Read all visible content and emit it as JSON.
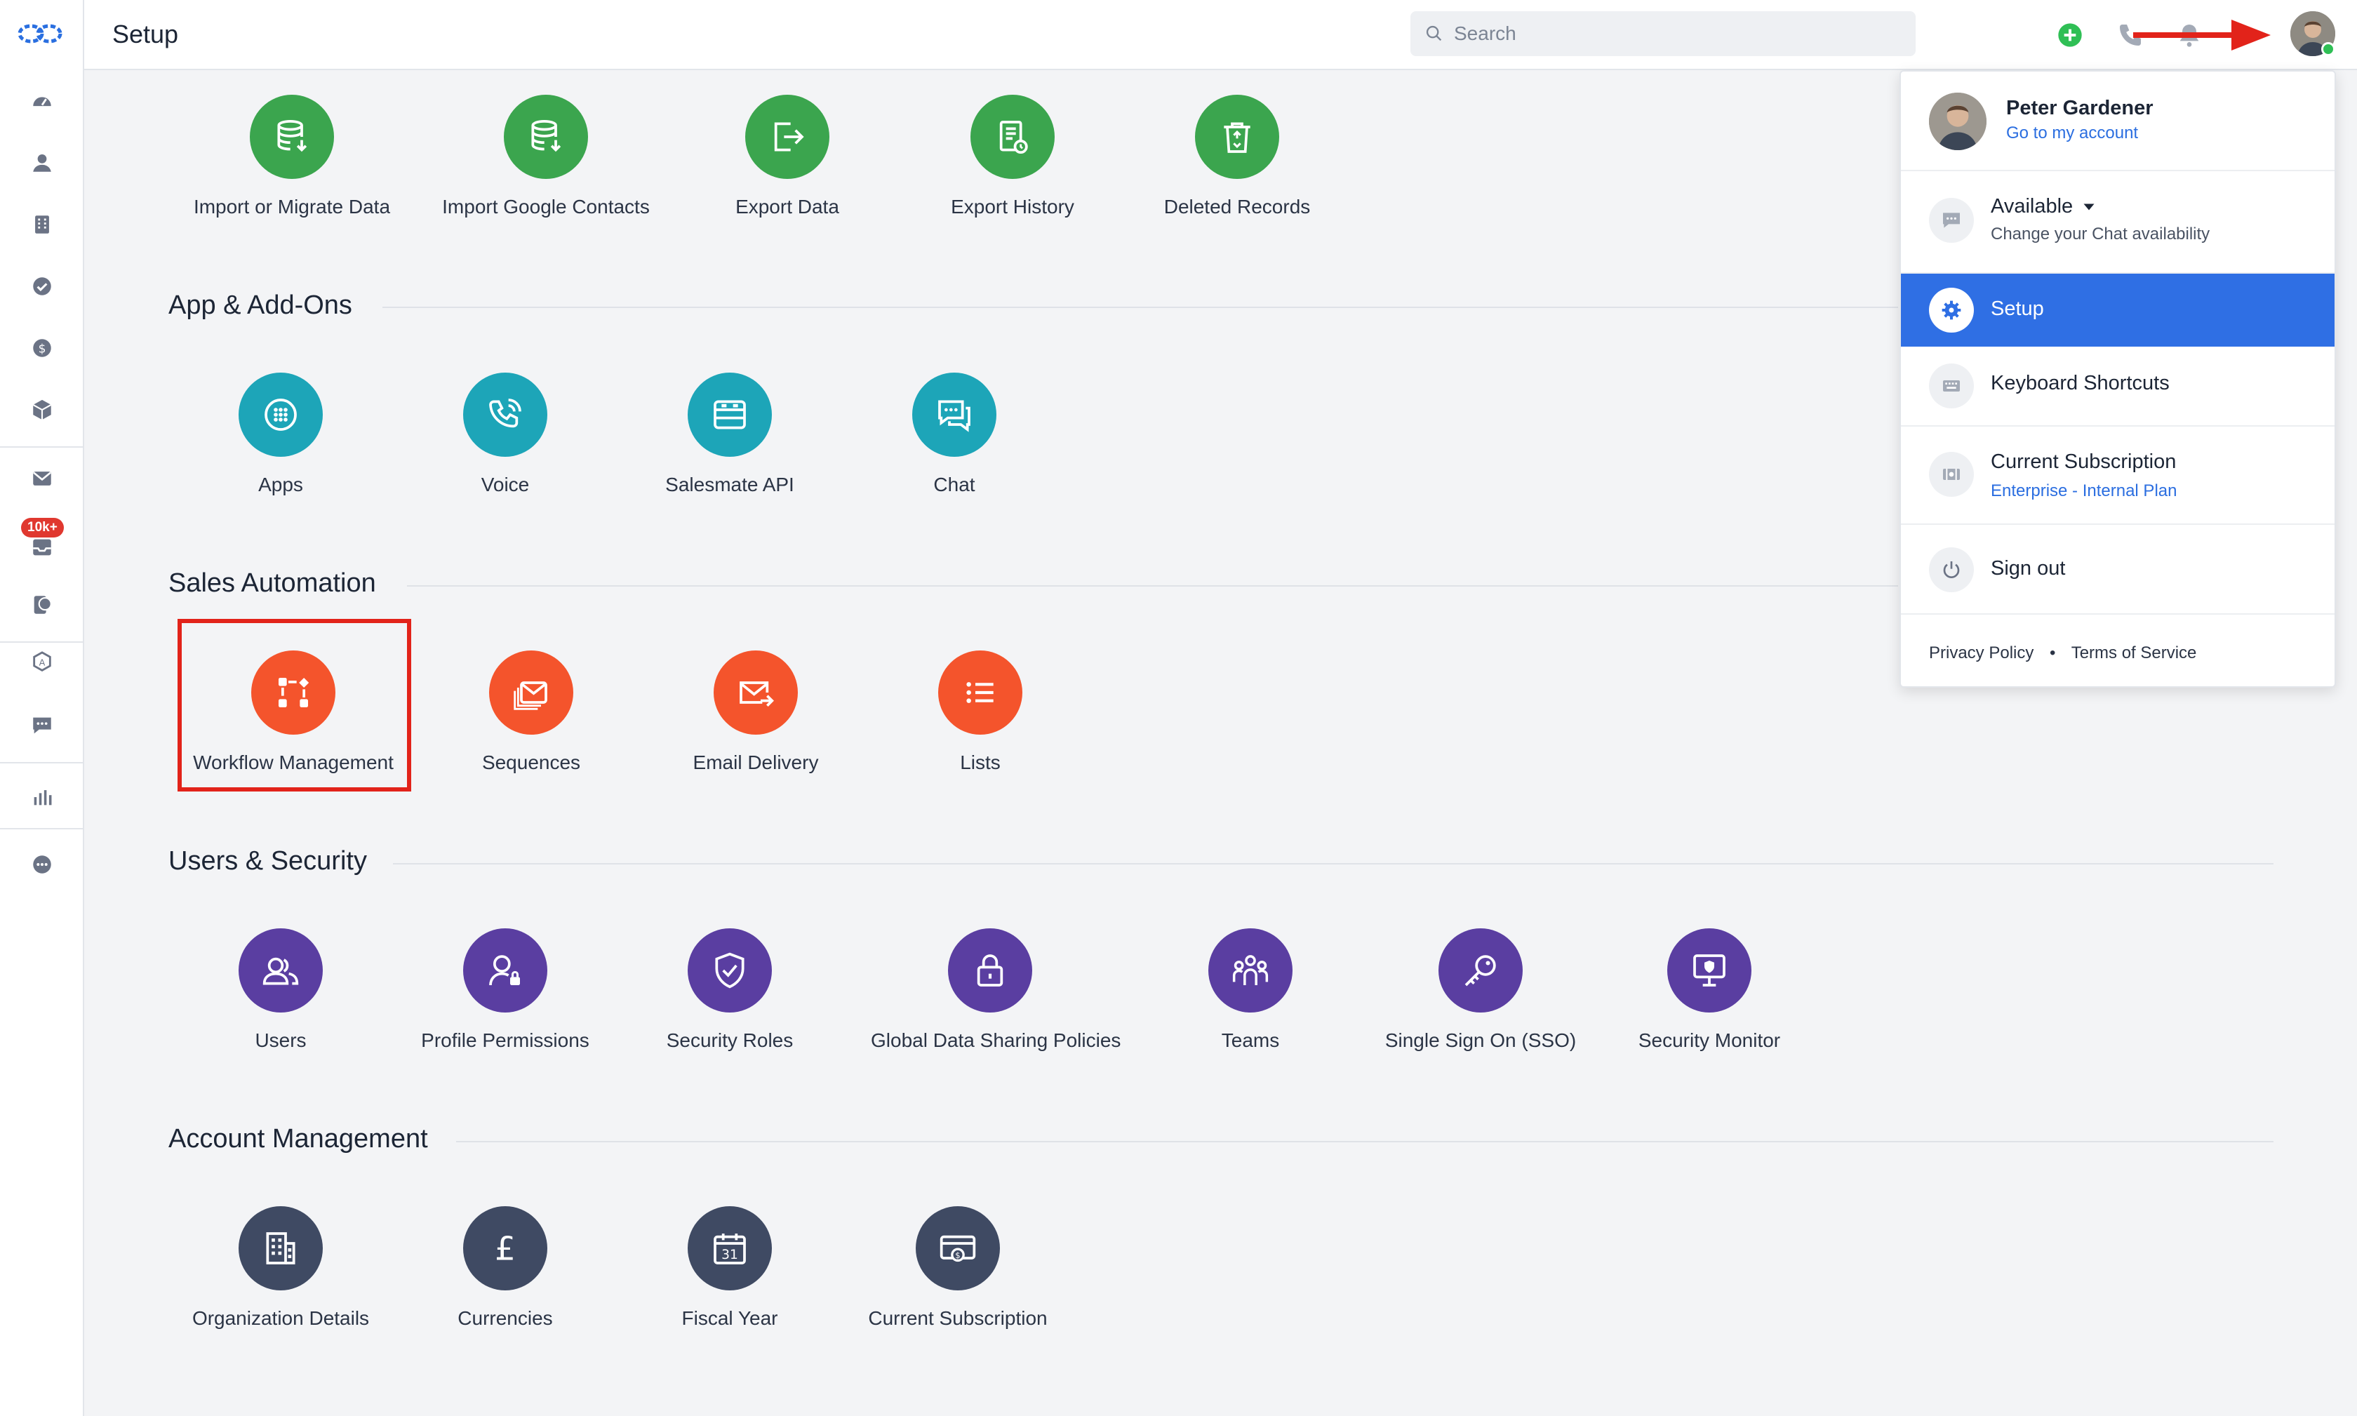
{
  "header": {
    "title": "Setup",
    "search_placeholder": "Search"
  },
  "rail": {
    "badge": "10k+"
  },
  "sections": {
    "data_administration": {
      "items": [
        {
          "label": "Import or Migrate Data"
        },
        {
          "label": "Import Google Contacts"
        },
        {
          "label": "Export Data"
        },
        {
          "label": "Export History"
        },
        {
          "label": "Deleted Records"
        }
      ]
    },
    "app_addons": {
      "title": "App & Add-Ons",
      "items": [
        {
          "label": "Apps"
        },
        {
          "label": "Voice"
        },
        {
          "label": "Salesmate API"
        },
        {
          "label": "Chat"
        }
      ]
    },
    "sales_automation": {
      "title": "Sales Automation",
      "items": [
        {
          "label": "Workflow Management"
        },
        {
          "label": "Sequences"
        },
        {
          "label": "Email Delivery"
        },
        {
          "label": "Lists"
        }
      ]
    },
    "users_security": {
      "title": "Users & Security",
      "items": [
        {
          "label": "Users"
        },
        {
          "label": "Profile Permissions"
        },
        {
          "label": "Security Roles"
        },
        {
          "label": "Global Data Sharing Policies"
        },
        {
          "label": "Teams"
        },
        {
          "label": "Single Sign On (SSO)"
        },
        {
          "label": "Security Monitor"
        }
      ]
    },
    "account_management": {
      "title": "Account Management",
      "items": [
        {
          "label": "Organization Details"
        },
        {
          "label": "Currencies"
        },
        {
          "label": "Fiscal Year"
        },
        {
          "label": "Current Subscription"
        }
      ]
    }
  },
  "dropdown": {
    "user_name": "Peter Gardener",
    "account_link": "Go to my account",
    "availability": "Available",
    "availability_sub": "Change your Chat availability",
    "setup": "Setup",
    "shortcuts": "Keyboard Shortcuts",
    "subscription": "Current Subscription",
    "plan": "Enterprise - Internal Plan",
    "signout": "Sign out",
    "privacy": "Privacy Policy",
    "bullet": "•",
    "terms": "Terms of Service"
  },
  "colors": {
    "green": "#3ba54e",
    "teal": "#1da5b8",
    "orange": "#f4542c",
    "purple": "#5a3ea1",
    "slate": "#3f4a63",
    "accent": "#2f6fe4",
    "highlight": "#e2231a"
  },
  "icons": {
    "rail": [
      "logo-icon",
      "dashboard-icon",
      "contacts-icon",
      "companies-icon",
      "tasks-icon",
      "deals-icon",
      "products-icon",
      "email-icon",
      "inbox-icon",
      "messenger-icon",
      "automation-icon",
      "chat-icon",
      "reports-icon",
      "more-icon"
    ],
    "header": [
      "search-icon",
      "add-icon",
      "phone-icon",
      "bell-icon",
      "avatar"
    ]
  }
}
